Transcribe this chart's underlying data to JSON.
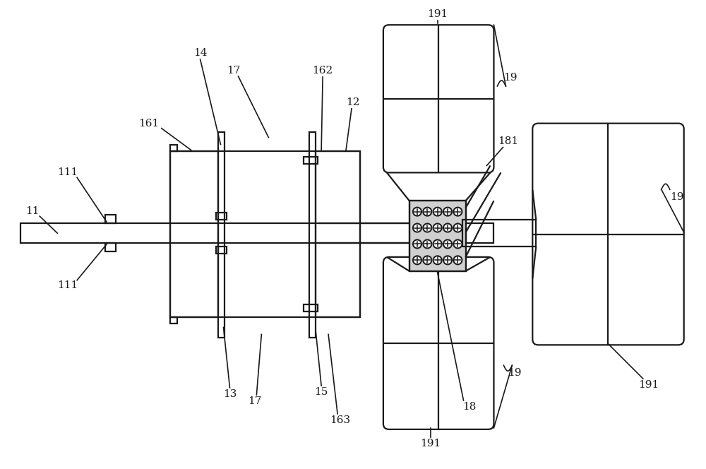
{
  "bg_color": "#ffffff",
  "lc": "#1a1a1a",
  "lw": 1.6,
  "fig_w": 10.0,
  "fig_h": 6.64
}
